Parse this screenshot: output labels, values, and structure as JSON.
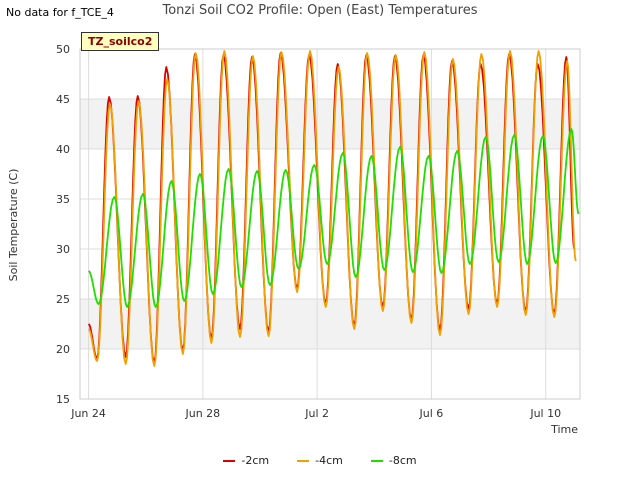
{
  "header": {
    "no_data_text": "No data for f_TCE_4",
    "title": "Tonzi Soil CO2 Profile: Open (East) Temperatures",
    "site_label": "TZ_soilco2"
  },
  "chart_data": {
    "type": "line",
    "title": "Tonzi Soil CO2 Profile: Open (East) Temperatures",
    "xlabel": "Time",
    "ylabel": "Soil Temperature (C)",
    "ylim": [
      15,
      50
    ],
    "xlim_days": [
      23.7,
      41.2
    ],
    "x_ticks": [
      {
        "label": "Jun 24",
        "day": 24
      },
      {
        "label": "Jun 28",
        "day": 28
      },
      {
        "label": "Jul 2",
        "day": 32
      },
      {
        "label": "Jul 6",
        "day": 36
      },
      {
        "label": "Jul 10",
        "day": 40
      }
    ],
    "y_ticks": [
      15,
      20,
      25,
      30,
      35,
      40,
      45,
      50
    ],
    "grid": true,
    "legend_position": "bottom",
    "series": [
      {
        "name": "-2cm",
        "color": "#dd0000",
        "x": [
          24.0,
          24.3,
          24.72,
          25.3,
          25.72,
          26.3,
          26.72,
          27.3,
          27.72,
          28.3,
          28.72,
          29.3,
          29.72,
          30.3,
          30.72,
          31.3,
          31.72,
          32.3,
          32.72,
          33.3,
          33.72,
          34.3,
          34.72,
          35.3,
          35.72,
          36.3,
          36.72,
          37.3,
          37.72,
          38.3,
          38.72,
          39.3,
          39.72,
          40.3,
          40.72,
          41.0
        ],
        "y": [
          22.5,
          19.0,
          45.2,
          19.2,
          45.3,
          18.6,
          48.2,
          19.8,
          49.5,
          21.0,
          49.4,
          22.0,
          49.2,
          21.7,
          49.6,
          26.0,
          49.4,
          24.5,
          48.5,
          22.3,
          49.4,
          24.2,
          49.3,
          22.9,
          49.4,
          21.9,
          48.8,
          24.0,
          48.5,
          24.5,
          49.5,
          23.7,
          48.5,
          23.5,
          49.2,
          30.0
        ]
      },
      {
        "name": "-4cm",
        "color": "#f0a000",
        "x": [
          24.0,
          24.3,
          24.75,
          25.3,
          25.75,
          26.3,
          26.75,
          27.3,
          27.75,
          28.3,
          28.75,
          29.3,
          29.75,
          30.3,
          30.75,
          31.3,
          31.75,
          32.3,
          32.75,
          33.3,
          33.75,
          34.3,
          34.75,
          35.3,
          35.75,
          36.3,
          36.75,
          37.3,
          37.75,
          38.3,
          38.75,
          39.3,
          39.75,
          40.3,
          40.75,
          41.05
        ],
        "y": [
          22.0,
          18.8,
          44.5,
          18.5,
          44.8,
          18.3,
          47.0,
          19.5,
          49.6,
          20.6,
          49.8,
          21.2,
          49.3,
          21.3,
          49.7,
          25.7,
          49.8,
          24.2,
          48.2,
          22.0,
          49.6,
          23.8,
          49.4,
          22.6,
          49.7,
          21.4,
          49.0,
          23.5,
          49.5,
          24.2,
          49.8,
          23.4,
          49.8,
          23.2,
          48.8,
          28.8
        ]
      },
      {
        "name": "-8cm",
        "color": "#22dd00",
        "x": [
          24.0,
          24.35,
          24.9,
          25.35,
          25.9,
          26.35,
          26.9,
          27.35,
          27.9,
          28.35,
          28.9,
          29.35,
          29.9,
          30.35,
          30.9,
          31.35,
          31.9,
          32.35,
          32.9,
          33.35,
          33.9,
          34.35,
          34.9,
          35.35,
          35.9,
          36.35,
          36.9,
          37.35,
          37.9,
          38.35,
          38.9,
          39.35,
          39.9,
          40.35,
          40.9,
          41.15
        ],
        "y": [
          27.8,
          24.5,
          35.2,
          24.2,
          35.5,
          24.2,
          36.8,
          24.8,
          37.5,
          25.5,
          38.0,
          26.2,
          37.8,
          26.4,
          37.9,
          28.0,
          38.4,
          28.5,
          39.6,
          27.2,
          39.3,
          27.9,
          40.2,
          27.7,
          39.3,
          27.6,
          39.8,
          28.5,
          41.2,
          28.7,
          41.4,
          28.5,
          41.3,
          28.6,
          42.0,
          33.5
        ]
      }
    ]
  }
}
